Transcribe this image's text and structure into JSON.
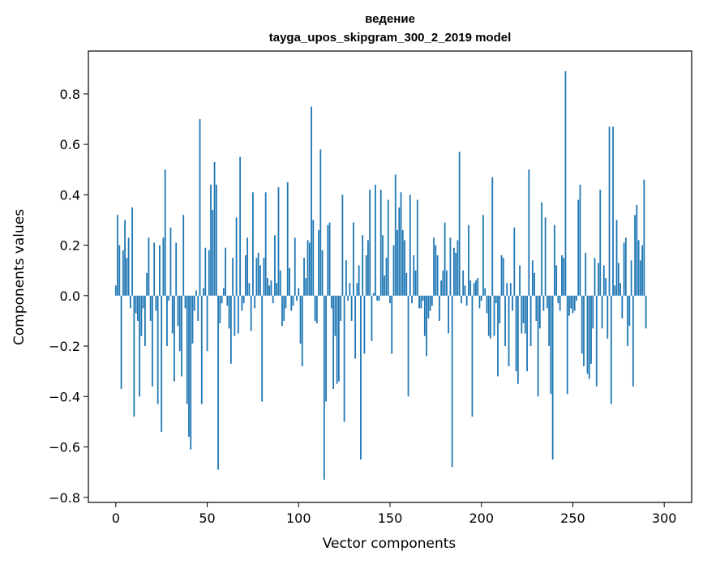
{
  "chart_data": {
    "type": "bar",
    "title": "ведение",
    "subtitle": "tayga_upos_skipgram_300_2_2019 model",
    "xlabel": "Vector components",
    "ylabel": "Components values",
    "xlim": [
      -15,
      315
    ],
    "ylim": [
      -0.82,
      0.97
    ],
    "xticks": [
      0,
      50,
      100,
      150,
      200,
      250,
      300
    ],
    "yticks": [
      -0.8,
      -0.6,
      -0.4,
      -0.2,
      0.0,
      0.2,
      0.4,
      0.6,
      0.8
    ],
    "ytick_labels": [
      "−0.8",
      "−0.6",
      "−0.4",
      "−0.2",
      "0.0",
      "0.2",
      "0.4",
      "0.6",
      "0.8"
    ],
    "bar_color": "#1f77b4",
    "grid": false,
    "legend": "none",
    "values": [
      0.04,
      0.32,
      0.2,
      -0.37,
      0.18,
      0.3,
      0.15,
      0.23,
      -0.05,
      0.35,
      -0.48,
      -0.07,
      -0.1,
      -0.4,
      -0.16,
      -0.05,
      -0.2,
      0.09,
      0.23,
      -0.1,
      -0.36,
      0.21,
      -0.06,
      -0.43,
      0.2,
      -0.54,
      0.23,
      0.5,
      -0.2,
      -0.02,
      0.27,
      -0.15,
      -0.34,
      0.21,
      -0.12,
      -0.22,
      -0.32,
      0.32,
      -0.05,
      -0.43,
      -0.56,
      -0.61,
      -0.19,
      -0.06,
      0.02,
      -0.1,
      0.7,
      -0.43,
      0.03,
      0.19,
      -0.22,
      0.18,
      0.44,
      0.34,
      0.53,
      0.44,
      -0.69,
      -0.11,
      -0.03,
      0.03,
      0.19,
      -0.04,
      -0.13,
      -0.27,
      0.15,
      -0.16,
      0.31,
      -0.15,
      0.55,
      -0.06,
      -0.03,
      0.16,
      0.23,
      0.05,
      -0.14,
      0.41,
      -0.05,
      0.15,
      0.17,
      0.12,
      -0.42,
      0.15,
      0.41,
      0.07,
      0.04,
      0.06,
      -0.03,
      0.24,
      0.05,
      0.43,
      0.1,
      -0.12,
      -0.1,
      -0.05,
      0.45,
      0.11,
      -0.06,
      -0.04,
      0.23,
      -0.02,
      0.03,
      -0.19,
      -0.28,
      0.15,
      0.07,
      0.22,
      0.21,
      0.75,
      0.3,
      -0.1,
      -0.11,
      0.26,
      0.58,
      0.18,
      -0.73,
      -0.42,
      0.28,
      0.29,
      -0.05,
      -0.37,
      -0.16,
      -0.35,
      -0.34,
      -0.1,
      0.4,
      -0.5,
      0.14,
      -0.02,
      0.05,
      -0.1,
      0.29,
      -0.25,
      0.05,
      0.12,
      -0.65,
      0.24,
      -0.23,
      0.16,
      0.22,
      0.42,
      -0.18,
      0.01,
      0.44,
      -0.02,
      -0.02,
      0.42,
      0.24,
      0.08,
      0.15,
      0.38,
      -0.03,
      -0.23,
      0.2,
      0.48,
      0.26,
      0.35,
      0.41,
      0.26,
      0.22,
      0.09,
      -0.4,
      0.4,
      -0.03,
      0.16,
      0.1,
      0.38,
      -0.05,
      -0.05,
      -0.02,
      -0.16,
      -0.24,
      -0.09,
      -0.06,
      -0.04,
      0.23,
      0.2,
      0.16,
      -0.1,
      0.06,
      0.1,
      0.29,
      0.1,
      -0.15,
      0.23,
      -0.68,
      0.19,
      0.17,
      0.22,
      0.57,
      -0.03,
      0.1,
      0.04,
      -0.04,
      0.28,
      0.06,
      -0.48,
      0.05,
      0.06,
      0.07,
      -0.05,
      -0.02,
      0.32,
      0.03,
      -0.07,
      -0.16,
      -0.17,
      0.47,
      -0.16,
      -0.03,
      -0.32,
      -0.11,
      0.16,
      0.15,
      -0.2,
      0.05,
      -0.28,
      0.05,
      -0.06,
      0.27,
      -0.3,
      -0.35,
      0.12,
      -0.15,
      -0.11,
      -0.15,
      -0.3,
      0.5,
      -0.2,
      0.14,
      0.09,
      -0.1,
      -0.4,
      -0.13,
      0.37,
      -0.06,
      0.31,
      -0.05,
      -0.2,
      -0.39,
      -0.65,
      0.28,
      0.12,
      -0.03,
      -0.06,
      0.16,
      0.15,
      0.89,
      -0.39,
      -0.08,
      -0.05,
      -0.07,
      -0.06,
      -0.02,
      0.38,
      0.44,
      -0.23,
      -0.28,
      0.17,
      -0.31,
      -0.33,
      -0.27,
      -0.13,
      0.15,
      -0.36,
      0.13,
      0.42,
      -0.13,
      0.12,
      0.07,
      -0.17,
      0.67,
      -0.43,
      0.67,
      0.04,
      0.3,
      0.13,
      0.05,
      -0.09,
      0.21,
      0.23,
      -0.2,
      -0.12,
      0.14,
      -0.36,
      0.32,
      0.36,
      0.22,
      0.14,
      0.2,
      0.46,
      -0.13
    ]
  }
}
